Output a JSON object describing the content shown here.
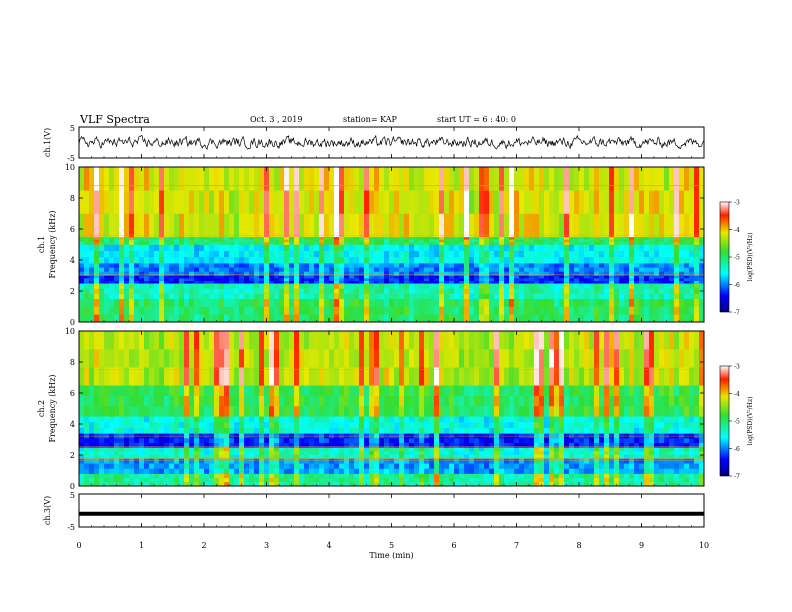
{
  "header": {
    "title": "VLF Spectra",
    "date": "Oct. 3 , 2019",
    "station": "station= KAP",
    "start_ut": "start UT = 6 : 40: 0"
  },
  "colors": {
    "spectrum_low": "#00007f",
    "spectrum_blue": "#0000ff",
    "spectrum_cyan": "#00ffff",
    "spectrum_green": "#33dd33",
    "spectrum_yellow": "#e8e800",
    "spectrum_red": "#ff2000",
    "waveform": "#000000"
  },
  "chart_data": [
    {
      "type": "line",
      "panel": "ch1-waveform",
      "ylabel": "ch.1(V)",
      "ylim": [
        -5,
        5
      ],
      "yticks": [
        "5",
        "-5"
      ],
      "xlim": [
        0,
        10
      ],
      "description_values": "noise-like waveform fluctuating roughly between -2 and 2 V"
    },
    {
      "type": "heatmap",
      "panel": "ch1-spectrum",
      "ylabel": "ch.1 Frequency (kHz)",
      "ylim": [
        0,
        10
      ],
      "yticks": [
        "0",
        "2",
        "4",
        "6",
        "8",
        "10"
      ],
      "xlim": [
        0,
        10
      ],
      "colorbar": {
        "label": "log(PSD)(V²/Hz)",
        "ticks": [
          "-3",
          "-4",
          "-5",
          "-6",
          "-7"
        ],
        "range": [
          -7,
          -3
        ]
      },
      "bands_khz": [
        {
          "from": 0,
          "to": 1.5,
          "level": -5.0
        },
        {
          "from": 1.5,
          "to": 2.5,
          "level": -5.3
        },
        {
          "from": 2.5,
          "to": 3.0,
          "level": -6.3
        },
        {
          "from": 3.0,
          "to": 3.8,
          "level": -6.0
        },
        {
          "from": 3.8,
          "to": 5.0,
          "level": -5.6
        },
        {
          "from": 5.0,
          "to": 5.5,
          "level": -5.0
        },
        {
          "from": 5.5,
          "to": 10,
          "level": -4.2
        }
      ]
    },
    {
      "type": "heatmap",
      "panel": "ch2-spectrum",
      "ylabel": "ch.2 Frequency (kHz)",
      "ylim": [
        0,
        10
      ],
      "yticks": [
        "0",
        "2",
        "4",
        "6",
        "8",
        "10"
      ],
      "xlim": [
        0,
        10
      ],
      "colorbar": {
        "label": "log(PSD)(V²/Hz)",
        "ticks": [
          "-3",
          "-4",
          "-5",
          "-6",
          "-7"
        ],
        "range": [
          -7,
          -3
        ]
      },
      "bands_khz": [
        {
          "from": 0,
          "to": 0.8,
          "level": -5.2
        },
        {
          "from": 0.8,
          "to": 1.8,
          "level": -5.9
        },
        {
          "from": 1.8,
          "to": 2.5,
          "level": -5.4
        },
        {
          "from": 2.5,
          "to": 3.4,
          "level": -6.3
        },
        {
          "from": 3.4,
          "to": 4.5,
          "level": -5.5
        },
        {
          "from": 4.5,
          "to": 6.5,
          "level": -4.9
        },
        {
          "from": 6.5,
          "to": 10,
          "level": -4.3
        }
      ]
    },
    {
      "type": "line",
      "panel": "ch3-waveform",
      "ylabel": "ch.3(V)",
      "ylim": [
        -5,
        5
      ],
      "yticks": [
        "5",
        "-5"
      ],
      "xlim": [
        0,
        10
      ],
      "constant_value": -1
    }
  ],
  "axis": {
    "xlabel": "Time (min)",
    "xticks": [
      "0",
      "1",
      "2",
      "3",
      "4",
      "5",
      "6",
      "7",
      "8",
      "9",
      "10"
    ]
  }
}
